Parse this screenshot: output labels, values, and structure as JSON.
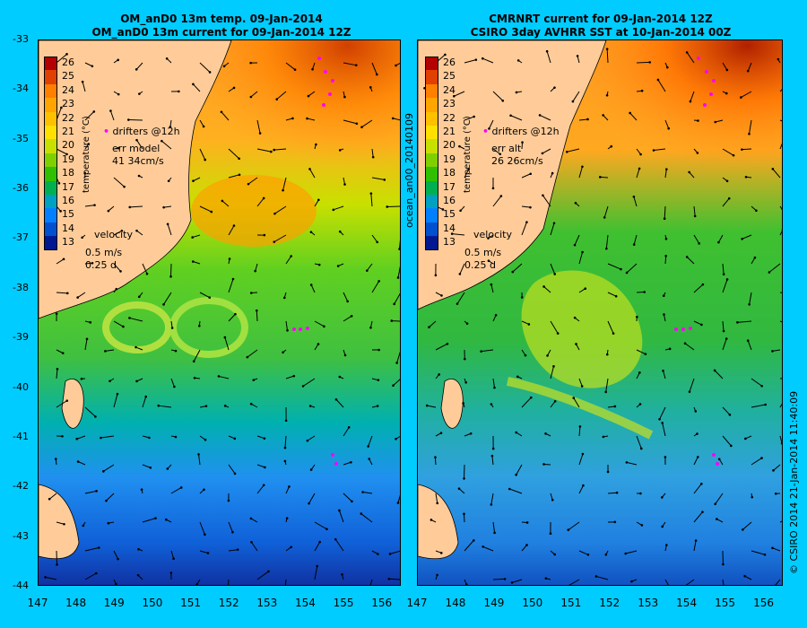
{
  "panels": {
    "left": {
      "title_line1": "OM_anD0 13m temp. 09-Jan-2014",
      "title_line2": "OM_anD0 13m current for 09-Jan-2014 12Z",
      "drifters_label": "drifters @12h",
      "err_label": "err model",
      "err_value": "41 34cm/s",
      "velocity_label": "velocity",
      "velocity_scale": "0.5 m/s",
      "velocity_time": "0.25 d"
    },
    "right": {
      "title_line1": "CMRNRT current for 09-Jan-2014 12Z",
      "title_line2": "CSIRO 3day AVHRR SST at 10-Jan-2014 00Z",
      "drifters_label": "drifters @12h",
      "err_label": "err alt",
      "err_value": "26 26cm/s",
      "velocity_label": "velocity",
      "velocity_scale": "0.5 m/s",
      "velocity_time": "0.25 d"
    }
  },
  "colorbar": {
    "title": "temperature (°C)",
    "values": [
      "26",
      "25",
      "24",
      "23",
      "22",
      "21",
      "20",
      "19",
      "18",
      "17",
      "16",
      "15",
      "14",
      "13"
    ],
    "colors": [
      "#b30000",
      "#e04000",
      "#ff7f00",
      "#ffa500",
      "#ffc000",
      "#ffe000",
      "#c8e000",
      "#80d000",
      "#30c000",
      "#00b050",
      "#00a0c0",
      "#0080ff",
      "#0050d0",
      "#001890"
    ]
  },
  "axes": {
    "y_ticks": [
      "-33",
      "-34",
      "-35",
      "-36",
      "-37",
      "-38",
      "-39",
      "-40",
      "-41",
      "-42",
      "-43",
      "-44"
    ],
    "x_ticks": [
      "147",
      "148",
      "149",
      "150",
      "151",
      "152",
      "153",
      "154",
      "155",
      "156"
    ]
  },
  "side_label": "ocean_an00_20140109",
  "footer_right": "© CSIRO 2014   21-Jan-2014 11:40:09",
  "colors": {
    "background": "#00ccff",
    "land": "#ffcc99",
    "drifter": "#ff00ff"
  }
}
